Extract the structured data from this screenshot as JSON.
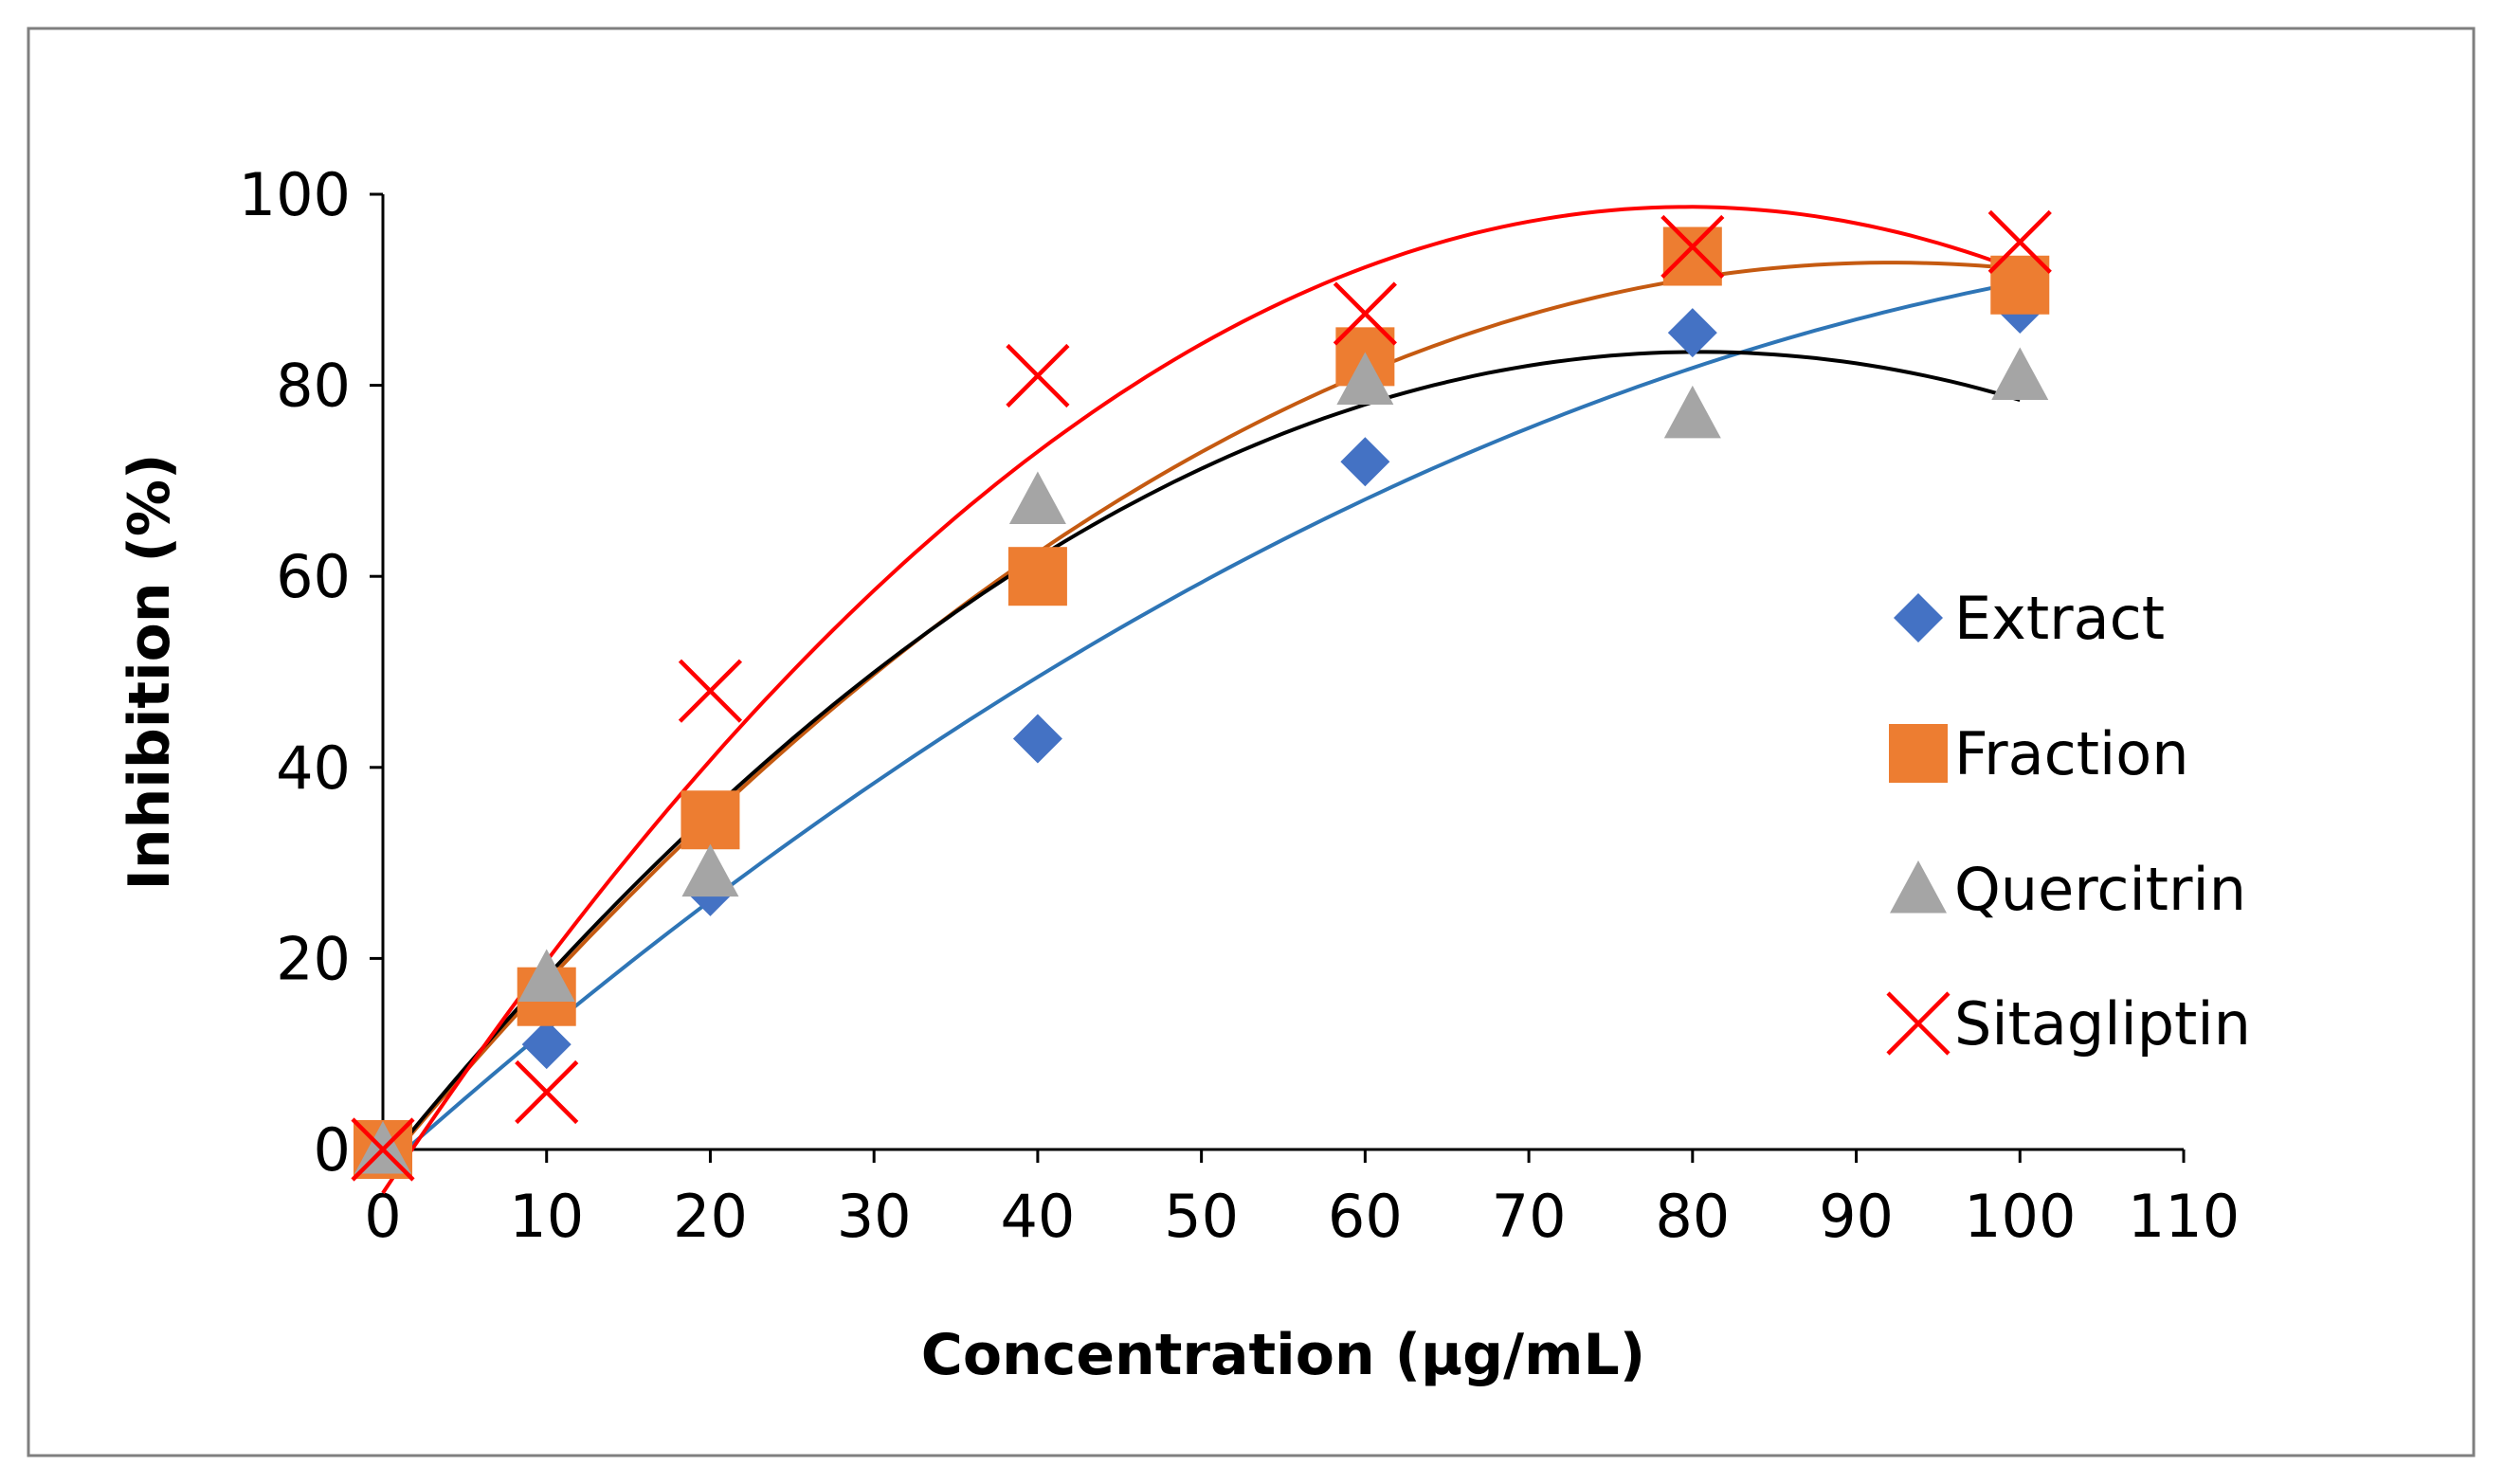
{
  "chart_data": {
    "type": "scatter",
    "title": "",
    "xlabel": "Concentration (µg/mL)",
    "ylabel": "Inhibition (%)",
    "xlim": [
      0,
      110
    ],
    "ylim": [
      0,
      100
    ],
    "xticks": [
      0,
      10,
      20,
      30,
      40,
      50,
      60,
      70,
      80,
      90,
      100,
      110
    ],
    "yticks": [
      0,
      20,
      40,
      60,
      80,
      100
    ],
    "grid": false,
    "legend_position": "right",
    "trendline": "polynomial order 2",
    "x": [
      0,
      10,
      20,
      40,
      60,
      80,
      100
    ],
    "series": [
      {
        "name": "Extract",
        "marker": "diamond",
        "color": "#4472C4",
        "trend_color": "#2E75B6",
        "values": [
          0,
          11,
          27,
          43,
          72,
          85.5,
          88
        ]
      },
      {
        "name": "Fraction",
        "marker": "square",
        "color": "#ED7D31",
        "trend_color": "#C55A11",
        "values": [
          0,
          16,
          34.5,
          60,
          83,
          93.5,
          90.5
        ]
      },
      {
        "name": "Quercitrin",
        "marker": "triangle",
        "color": "#A5A5A5",
        "trend_color": "#000000",
        "values": [
          0,
          18,
          29,
          68,
          80.5,
          77,
          81
        ]
      },
      {
        "name": "Sitagliptin",
        "marker": "x",
        "color": "#FF0000",
        "trend_color": "#FF0000",
        "values": [
          0,
          6,
          48,
          81,
          87.5,
          94.5,
          95
        ]
      }
    ]
  }
}
